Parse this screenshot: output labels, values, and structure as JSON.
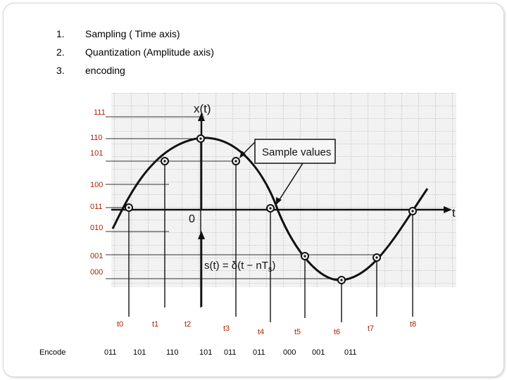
{
  "list": [
    {
      "num": "1.",
      "text": "Sampling ( Time axis)"
    },
    {
      "num": "2.",
      "text": "Quantization (Amplitude axis)"
    },
    {
      "num": "3.",
      "text": "encoding"
    }
  ],
  "figure": {
    "y_axis_label": "x(t)",
    "x_axis_label": "t",
    "origin_label": "0",
    "callout": "Sample values",
    "sampling_formula": "s(t) = δ(t − nT",
    "sampling_formula_sub": "s",
    "sampling_formula_end": ")"
  },
  "levels": [
    "111",
    "110",
    "101",
    "100",
    "011",
    "010",
    "001",
    "000"
  ],
  "times": [
    "t0",
    "t1",
    "t2",
    "t3",
    "t4",
    "t5",
    "t6",
    "t7",
    "t8"
  ],
  "encode_label": "Encode",
  "codes": [
    "011",
    "101",
    "110",
    "101",
    "011",
    "011",
    "000",
    "001",
    "011"
  ],
  "colors": {
    "level_text": "#aa2200",
    "grid_bg": "#f2f2f2",
    "grid_line": "#9a9a9a"
  }
}
